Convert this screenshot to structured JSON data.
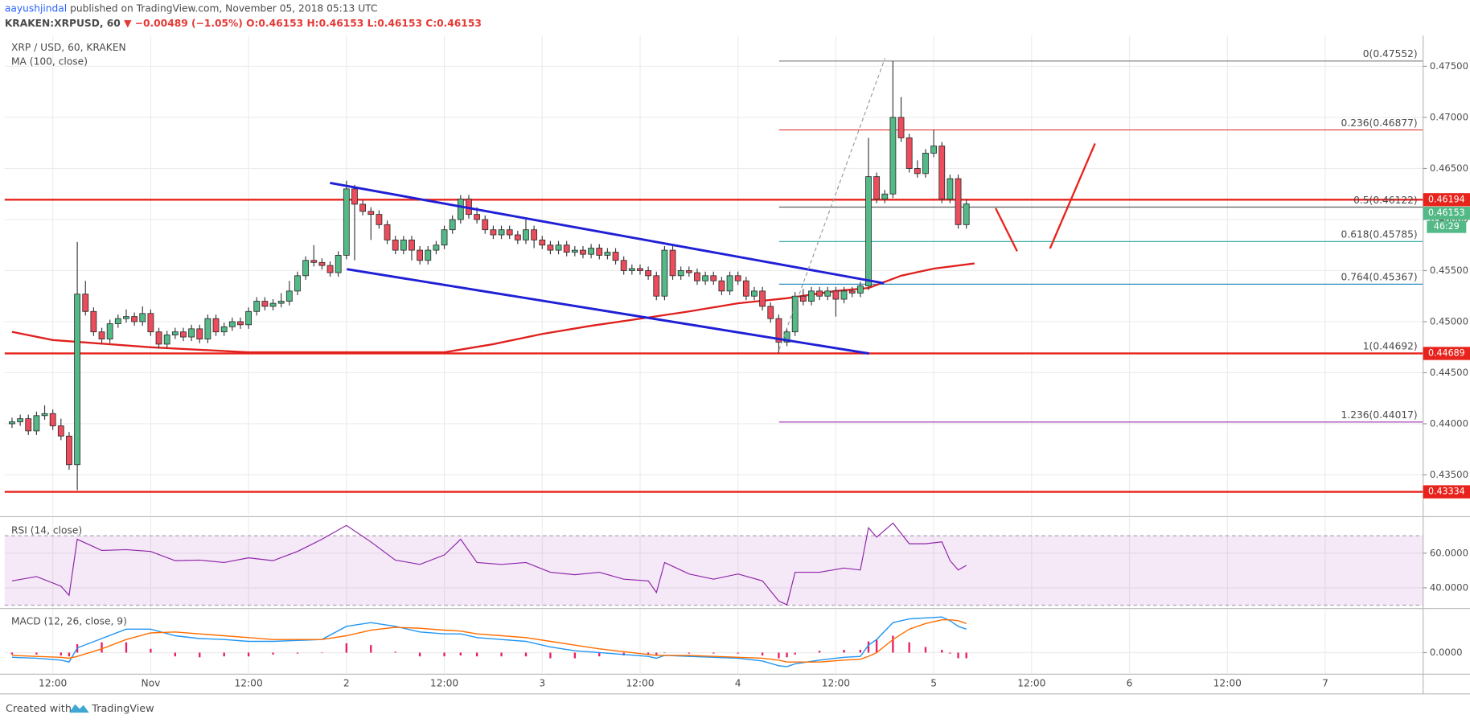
{
  "header": {
    "author": "aayushjindal",
    "published": "published on TradingView.com, November 05, 2018 05:13 UTC",
    "symbol": "KRAKEN:XRPUSD, 60",
    "change": "▼ −0.00489 (−1.05%)",
    "ohlc": [
      "O:0.46153",
      "H:0.46153",
      "L:0.46153",
      "C:0.46153"
    ]
  },
  "chart_data": [
    {
      "type": "candlestick",
      "title": "XRP / USD, 60, KRAKEN",
      "grid": true,
      "up_color": "#53b987",
      "down_color": "#eb4d5c",
      "x": [
        7,
        8,
        9,
        10,
        11,
        12,
        13,
        14,
        15,
        16,
        17,
        18,
        19,
        20,
        21,
        22,
        23,
        24,
        25,
        26,
        27,
        28,
        29,
        30,
        31,
        32,
        33,
        34,
        35,
        36,
        37,
        38,
        39,
        40,
        41,
        42,
        43,
        44,
        45,
        46,
        47,
        48,
        49,
        50,
        51,
        52,
        53,
        54,
        55,
        56,
        57,
        58,
        59,
        60,
        61,
        62,
        63,
        64,
        65,
        66,
        67,
        68,
        69,
        70,
        71,
        72,
        73,
        74,
        75,
        76,
        77,
        78,
        79,
        80,
        81,
        82,
        83,
        84,
        85,
        86,
        87,
        88,
        89,
        90,
        91,
        92,
        93,
        94,
        95,
        96,
        97,
        98,
        99,
        100,
        101,
        102,
        103,
        104,
        105,
        106,
        107,
        108,
        109,
        110,
        111,
        112,
        113,
        114,
        115,
        116,
        117,
        118,
        119,
        120,
        121,
        122,
        123,
        124
      ],
      "open": [
        0.44,
        0.4402,
        0.4405,
        0.4393,
        0.4408,
        0.441,
        0.4398,
        0.4388,
        0.436,
        0.4527,
        0.451,
        0.449,
        0.4483,
        0.4498,
        0.4503,
        0.4505,
        0.45,
        0.4508,
        0.449,
        0.4478,
        0.4487,
        0.449,
        0.4485,
        0.4493,
        0.4483,
        0.4503,
        0.449,
        0.4495,
        0.45,
        0.4497,
        0.451,
        0.452,
        0.4515,
        0.4518,
        0.452,
        0.453,
        0.4545,
        0.456,
        0.4558,
        0.4555,
        0.4548,
        0.4565,
        0.463,
        0.4615,
        0.4608,
        0.4605,
        0.4595,
        0.458,
        0.457,
        0.458,
        0.457,
        0.456,
        0.457,
        0.4575,
        0.459,
        0.46,
        0.462,
        0.4605,
        0.46,
        0.459,
        0.4585,
        0.459,
        0.4585,
        0.458,
        0.459,
        0.458,
        0.4575,
        0.457,
        0.4575,
        0.4568,
        0.457,
        0.4566,
        0.4572,
        0.4565,
        0.4568,
        0.456,
        0.455,
        0.4552,
        0.455,
        0.4545,
        0.4525,
        0.457,
        0.4545,
        0.455,
        0.4548,
        0.454,
        0.4545,
        0.454,
        0.453,
        0.4545,
        0.454,
        0.4525,
        0.453,
        0.4515,
        0.4503,
        0.448,
        0.449,
        0.4525,
        0.452,
        0.453,
        0.4525,
        0.453,
        0.4522,
        0.453,
        0.4528,
        0.4535,
        0.4642,
        0.462,
        0.4625,
        0.47,
        0.468,
        0.465,
        0.4645,
        0.4665,
        0.4672,
        0.462,
        0.464,
        0.4595
      ],
      "high": [
        0.4406,
        0.4409,
        0.4409,
        0.4412,
        0.4418,
        0.4414,
        0.4405,
        0.4392,
        0.4578,
        0.454,
        0.4514,
        0.4494,
        0.4502,
        0.4507,
        0.4512,
        0.4509,
        0.4515,
        0.4512,
        0.4494,
        0.4491,
        0.4494,
        0.4494,
        0.4497,
        0.4497,
        0.4507,
        0.4507,
        0.4499,
        0.4504,
        0.4504,
        0.4514,
        0.4524,
        0.4524,
        0.4522,
        0.4528,
        0.454,
        0.4549,
        0.4564,
        0.4575,
        0.4562,
        0.4559,
        0.4569,
        0.4638,
        0.4634,
        0.4619,
        0.4612,
        0.4609,
        0.4599,
        0.4584,
        0.4584,
        0.4584,
        0.4574,
        0.4574,
        0.4579,
        0.4594,
        0.4604,
        0.4624,
        0.4624,
        0.4612,
        0.4604,
        0.4594,
        0.4594,
        0.4594,
        0.4589,
        0.46,
        0.4594,
        0.4584,
        0.4579,
        0.4579,
        0.4579,
        0.4574,
        0.4574,
        0.4576,
        0.4576,
        0.4572,
        0.4572,
        0.4564,
        0.4556,
        0.4556,
        0.4554,
        0.4549,
        0.4574,
        0.4574,
        0.4554,
        0.4554,
        0.4552,
        0.4549,
        0.4549,
        0.4544,
        0.4549,
        0.4549,
        0.4544,
        0.4534,
        0.4534,
        0.4519,
        0.4507,
        0.4494,
        0.4529,
        0.4532,
        0.4534,
        0.4534,
        0.4534,
        0.4534,
        0.4534,
        0.4534,
        0.4539,
        0.468,
        0.4646,
        0.4629,
        0.47552,
        0.472,
        0.4684,
        0.4658,
        0.4669,
        0.4688,
        0.4676,
        0.4644,
        0.4644,
        0.462
      ],
      "low": [
        0.4396,
        0.4398,
        0.4389,
        0.4389,
        0.4404,
        0.4394,
        0.4384,
        0.4355,
        0.4335,
        0.4506,
        0.4486,
        0.4479,
        0.4479,
        0.4494,
        0.4499,
        0.4496,
        0.4496,
        0.4486,
        0.4474,
        0.4474,
        0.4483,
        0.4481,
        0.4481,
        0.4479,
        0.4479,
        0.4486,
        0.4486,
        0.4491,
        0.4493,
        0.4493,
        0.4506,
        0.4511,
        0.4511,
        0.4514,
        0.4516,
        0.4526,
        0.4541,
        0.4554,
        0.4551,
        0.4544,
        0.4544,
        0.4561,
        0.456,
        0.4604,
        0.458,
        0.4591,
        0.4576,
        0.4566,
        0.4566,
        0.456,
        0.4556,
        0.4556,
        0.4566,
        0.4571,
        0.4586,
        0.4596,
        0.4601,
        0.4596,
        0.4586,
        0.4581,
        0.4581,
        0.4581,
        0.4576,
        0.4576,
        0.4572,
        0.4571,
        0.4566,
        0.4566,
        0.4564,
        0.4564,
        0.4562,
        0.4562,
        0.4561,
        0.4561,
        0.4556,
        0.4546,
        0.4546,
        0.4546,
        0.4541,
        0.4521,
        0.4521,
        0.4541,
        0.4541,
        0.4544,
        0.4536,
        0.4536,
        0.4536,
        0.4526,
        0.4526,
        0.4536,
        0.4521,
        0.4521,
        0.4511,
        0.4499,
        0.4469,
        0.4476,
        0.4486,
        0.4516,
        0.4516,
        0.4521,
        0.4521,
        0.4505,
        0.4518,
        0.4524,
        0.4524,
        0.4531,
        0.4616,
        0.4616,
        0.4621,
        0.4676,
        0.4646,
        0.4641,
        0.4641,
        0.4661,
        0.4616,
        0.4616,
        0.4591,
        0.4591
      ],
      "close": [
        0.4402,
        0.4405,
        0.4393,
        0.4408,
        0.441,
        0.4398,
        0.4388,
        0.436,
        0.4527,
        0.451,
        0.449,
        0.4483,
        0.4498,
        0.4503,
        0.4505,
        0.45,
        0.4508,
        0.449,
        0.4478,
        0.4487,
        0.449,
        0.4485,
        0.4493,
        0.4483,
        0.4503,
        0.449,
        0.4495,
        0.45,
        0.4497,
        0.451,
        0.452,
        0.4515,
        0.4518,
        0.452,
        0.453,
        0.4545,
        0.456,
        0.4558,
        0.4555,
        0.4548,
        0.4565,
        0.463,
        0.4615,
        0.4608,
        0.4605,
        0.4595,
        0.458,
        0.457,
        0.458,
        0.457,
        0.456,
        0.457,
        0.4575,
        0.459,
        0.46,
        0.462,
        0.4605,
        0.46,
        0.459,
        0.4585,
        0.459,
        0.4585,
        0.458,
        0.459,
        0.458,
        0.4575,
        0.457,
        0.4575,
        0.4568,
        0.457,
        0.4566,
        0.4572,
        0.4565,
        0.4568,
        0.456,
        0.455,
        0.4552,
        0.455,
        0.4545,
        0.4525,
        0.457,
        0.4545,
        0.455,
        0.4548,
        0.454,
        0.4545,
        0.454,
        0.453,
        0.4545,
        0.454,
        0.4525,
        0.453,
        0.4515,
        0.4503,
        0.448,
        0.449,
        0.4525,
        0.452,
        0.453,
        0.4525,
        0.453,
        0.4522,
        0.453,
        0.4528,
        0.4535,
        0.4642,
        0.462,
        0.4625,
        0.47,
        0.468,
        0.465,
        0.4645,
        0.4665,
        0.4672,
        0.462,
        0.464,
        0.4595,
        0.46153
      ],
      "xlim": [
        6.1,
        180
      ],
      "xticks": [
        {
          "value": 12,
          "label": "12:00"
        },
        {
          "value": 24,
          "label": "Nov"
        },
        {
          "value": 36,
          "label": "12:00"
        },
        {
          "value": 48,
          "label": "2"
        },
        {
          "value": 60,
          "label": "12:00"
        },
        {
          "value": 72,
          "label": "3"
        },
        {
          "value": 84,
          "label": "12:00"
        },
        {
          "value": 96,
          "label": "4"
        },
        {
          "value": 108,
          "label": "12:00"
        },
        {
          "value": 120,
          "label": "5"
        },
        {
          "value": 132,
          "label": "12:00"
        },
        {
          "value": 144,
          "label": "6"
        },
        {
          "value": 156,
          "label": "12:00"
        },
        {
          "value": 168,
          "label": "7"
        }
      ],
      "ylim": [
        0.431,
        0.478
      ],
      "yticks": [
        {
          "value": 0.435,
          "label": "0.43500"
        },
        {
          "value": 0.44,
          "label": "0.44000"
        },
        {
          "value": 0.445,
          "label": "0.44500"
        },
        {
          "value": 0.45,
          "label": "0.45000"
        },
        {
          "value": 0.455,
          "label": "0.45500"
        },
        {
          "value": 0.46,
          "label": "0.46000"
        },
        {
          "value": 0.465,
          "label": "0.46500"
        },
        {
          "value": 0.47,
          "label": "0.47000"
        },
        {
          "value": 0.475,
          "label": "0.47500"
        }
      ],
      "ma": {
        "name": "MA (100, close)",
        "color": "#e0201e",
        "x": [
          7,
          12,
          24,
          36,
          48,
          56,
          60,
          66,
          72,
          78,
          84,
          90,
          96,
          102,
          108,
          112,
          116,
          120,
          125
        ],
        "values": [
          0.449,
          0.4482,
          0.4475,
          0.447,
          0.447,
          0.447,
          0.447,
          0.4478,
          0.4488,
          0.4496,
          0.4503,
          0.451,
          0.4518,
          0.4523,
          0.453,
          0.4533,
          0.4545,
          0.4552,
          0.4557
        ]
      },
      "price_lines": [
        {
          "value": 0.46194,
          "label": "0.46194"
        },
        {
          "value": 0.44689,
          "label": "0.44689"
        },
        {
          "value": 0.43334,
          "label": "0.43334"
        }
      ],
      "price_line_color": "#e8231c",
      "fibonacci": [
        {
          "value": 0.47552,
          "label": "0(0.47552)",
          "color": "#8c8c8c"
        },
        {
          "value": 0.46877,
          "label": "0.236(0.46877)",
          "color": "#e53935"
        },
        {
          "value": 0.46122,
          "label": "0.5(0.46122)",
          "color": "#5d5d5d"
        },
        {
          "value": 0.45785,
          "label": "0.618(0.45785)",
          "color": "#26a69a"
        },
        {
          "value": 0.45367,
          "label": "0.764(0.45367)",
          "color": "#2b8cbf"
        },
        {
          "value": 0.44692,
          "label": "1(0.44692)",
          "color": "#2196f3"
        },
        {
          "value": 0.44017,
          "label": "1.236(0.44017)",
          "color": "#9c27b0"
        }
      ],
      "last_price": {
        "value": 0.46153,
        "label": "0.46153",
        "color": "#53b987"
      },
      "countdown": "46:29"
    },
    {
      "type": "line",
      "title": "RSI (14, close)",
      "color": "#8e24aa",
      "band": [
        30,
        70
      ],
      "x": [
        7,
        10,
        13,
        14,
        15,
        18,
        21,
        24,
        27,
        30,
        33,
        36,
        39,
        42,
        45,
        48,
        51,
        54,
        57,
        60,
        62,
        64,
        67,
        70,
        73,
        76,
        79,
        82,
        85,
        86,
        87,
        90,
        93,
        96,
        99,
        101,
        102,
        103,
        106,
        109,
        111,
        112,
        113,
        115,
        117,
        119,
        121,
        122,
        123,
        124
      ],
      "values": [
        44,
        46.5,
        41,
        35.7,
        68,
        61.6,
        62,
        61,
        55.7,
        56,
        54.6,
        57.3,
        55.7,
        61,
        68,
        76,
        66.5,
        56,
        53.5,
        59,
        68,
        54.6,
        53.5,
        54.6,
        49,
        47.6,
        49,
        45,
        44,
        37.3,
        54.6,
        48,
        45,
        48,
        44,
        32.4,
        30.3,
        49,
        49,
        51.4,
        50.3,
        74.6,
        69.2,
        77.3,
        65.4,
        65.4,
        66.5,
        55.7,
        50.3,
        53
      ],
      "ylim": [
        28.6,
        80.5
      ],
      "yticks": [
        {
          "value": 60,
          "label": "60.0000"
        },
        {
          "value": 40,
          "label": "40.0000"
        }
      ]
    },
    {
      "type": "macd",
      "title": "MACD (12, 26, close, 9)",
      "x": [
        7,
        10,
        13,
        14,
        15,
        18,
        21,
        24,
        27,
        30,
        33,
        36,
        39,
        42,
        45,
        48,
        51,
        54,
        57,
        60,
        62,
        64,
        67,
        70,
        73,
        76,
        79,
        82,
        85,
        86,
        87,
        90,
        93,
        96,
        99,
        101,
        102,
        103,
        106,
        109,
        111,
        112,
        113,
        115,
        117,
        119,
        121,
        122,
        123,
        124
      ],
      "macd": {
        "color": "#2196f3",
        "values": [
          -0.0005,
          -0.0006,
          -0.0008,
          -0.001,
          0.0005,
          0.0015,
          0.0025,
          0.0025,
          0.0018,
          0.0015,
          0.0014,
          0.0012,
          0.0012,
          0.0013,
          0.0014,
          0.0028,
          0.0032,
          0.0028,
          0.0022,
          0.002,
          0.002,
          0.0016,
          0.0014,
          0.0012,
          0.0006,
          0.0002,
          0,
          -0.0002,
          -0.0004,
          -0.0006,
          -0.0003,
          -0.0004,
          -0.0005,
          -0.0006,
          -0.0009,
          -0.0014,
          -0.0015,
          -0.0012,
          -0.0008,
          -0.0005,
          -0.0004,
          0.0008,
          0.0014,
          0.0032,
          0.0036,
          0.0037,
          0.0038,
          0.0034,
          0.0028,
          0.0025
        ]
      },
      "signal": {
        "color": "#ff6d00",
        "values": [
          -0.0003,
          -0.0004,
          -0.0005,
          -0.0006,
          -0.0004,
          0.0004,
          0.0014,
          0.0021,
          0.0022,
          0.002,
          0.0018,
          0.0016,
          0.0014,
          0.0014,
          0.0014,
          0.0018,
          0.0024,
          0.0027,
          0.0026,
          0.0024,
          0.0023,
          0.002,
          0.0018,
          0.0016,
          0.0012,
          0.0008,
          0.0004,
          0.0001,
          -0.0002,
          -0.0003,
          -0.0003,
          -0.0003,
          -0.0004,
          -0.0005,
          -0.0006,
          -0.0008,
          -0.001,
          -0.001,
          -0.001,
          -0.0008,
          -0.0007,
          -0.0004,
          0,
          0.0014,
          0.0025,
          0.0031,
          0.0035,
          0.0035,
          0.0034,
          0.0031
        ]
      },
      "histogram": {
        "color": "#e91e63",
        "values": [
          -0.0002,
          -0.0002,
          -0.0003,
          -0.0004,
          0.0009,
          0.0011,
          0.0011,
          0.0004,
          -0.0004,
          -0.0005,
          -0.0004,
          -0.0004,
          -0.0002,
          -0.0001,
          0,
          0.001,
          0.0008,
          0.0001,
          -0.0004,
          -0.0004,
          -0.0003,
          -0.0004,
          -0.0004,
          -0.0004,
          -0.0006,
          -0.0006,
          -0.0004,
          -0.0003,
          -0.0002,
          -0.0003,
          0,
          -0.0001,
          -0.0001,
          -0.0001,
          -0.0003,
          -0.0006,
          -0.0005,
          -0.0002,
          0.0002,
          0.0003,
          0.0003,
          0.0012,
          0.0014,
          0.0018,
          0.0011,
          0.0006,
          0.0003,
          -0.0001,
          -0.0006,
          -0.0006
        ]
      },
      "ylim": [
        -0.0022,
        0.0046
      ],
      "yticks": [
        {
          "value": 0,
          "label": "0.0000"
        }
      ]
    }
  ],
  "footer": {
    "created": "Created with",
    "brand": "TradingView"
  }
}
